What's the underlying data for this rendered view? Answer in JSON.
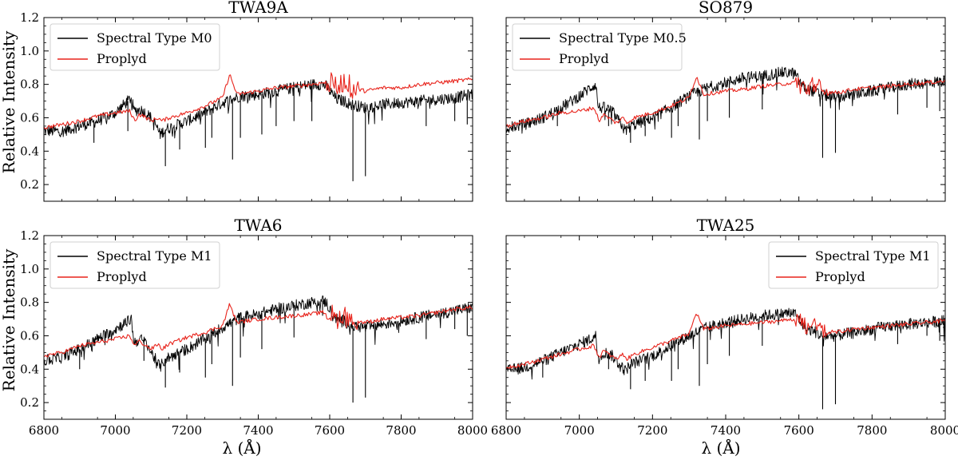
{
  "figure": {
    "ylabel": "Relative Intensity",
    "xlabel": "λ (Å)"
  },
  "chart_data": [
    {
      "type": "line",
      "title": "TWA9A",
      "xlabel": "",
      "ylabel": "Relative Intensity",
      "xlim": [
        6800,
        8000
      ],
      "ylim": [
        0.1,
        1.2
      ],
      "xticks": [
        "6800",
        "7000",
        "7200",
        "7400",
        "7600",
        "7800",
        "8000"
      ],
      "yticks": [
        "0.2",
        "0.4",
        "0.6",
        "0.8",
        "1.0",
        "1.2"
      ],
      "legend_position": "top-left",
      "series": [
        {
          "name": "Spectral Type M0",
          "color": "#000000",
          "x": [
            6800,
            6850,
            6900,
            6950,
            7000,
            7030,
            7045,
            7052,
            7070,
            7090,
            7100,
            7115,
            7125,
            7140,
            7200,
            7250,
            7300,
            7350,
            7400,
            7450,
            7500,
            7550,
            7580,
            7590,
            7600,
            7620,
            7640,
            7660,
            7700,
            7750,
            7800,
            7850,
            7900,
            7950,
            8000
          ],
          "values": [
            0.52,
            0.52,
            0.55,
            0.58,
            0.63,
            0.69,
            0.72,
            0.64,
            0.65,
            0.62,
            0.6,
            0.55,
            0.5,
            0.53,
            0.58,
            0.63,
            0.69,
            0.73,
            0.74,
            0.76,
            0.78,
            0.8,
            0.8,
            0.79,
            0.76,
            0.71,
            0.7,
            0.68,
            0.66,
            0.68,
            0.69,
            0.7,
            0.71,
            0.72,
            0.74
          ],
          "lines": [
            [
              6940,
              0.45
            ],
            [
              7035,
              0.52
            ],
            [
              7140,
              0.31
            ],
            [
              7180,
              0.41
            ],
            [
              7252,
              0.42
            ],
            [
              7270,
              0.48
            ],
            [
              7328,
              0.35
            ],
            [
              7350,
              0.48
            ],
            [
              7410,
              0.5
            ],
            [
              7450,
              0.55
            ],
            [
              7500,
              0.58
            ],
            [
              7550,
              0.58
            ],
            [
              7665,
              0.22
            ],
            [
              7700,
              0.25
            ],
            [
              7870,
              0.55
            ],
            [
              7950,
              0.58
            ],
            [
              7985,
              0.56
            ]
          ]
        },
        {
          "name": "Proplyd",
          "color": "#e8241c",
          "x": [
            6800,
            6850,
            6900,
            6950,
            7000,
            7040,
            7055,
            7065,
            7080,
            7100,
            7120,
            7130,
            7150,
            7200,
            7250,
            7300,
            7320,
            7340,
            7400,
            7450,
            7500,
            7550,
            7580,
            7600,
            7620,
            7640,
            7660,
            7700,
            7750,
            7800,
            7850,
            7900,
            7950,
            8000
          ],
          "values": [
            0.54,
            0.56,
            0.58,
            0.61,
            0.63,
            0.64,
            0.58,
            0.62,
            0.61,
            0.58,
            0.6,
            0.58,
            0.6,
            0.63,
            0.67,
            0.72,
            0.86,
            0.74,
            0.76,
            0.78,
            0.79,
            0.8,
            0.81,
            0.81,
            0.78,
            0.82,
            0.78,
            0.76,
            0.78,
            0.78,
            0.8,
            0.81,
            0.82,
            0.83
          ],
          "lines": []
        }
      ]
    },
    {
      "type": "line",
      "title": "SO879",
      "xlabel": "",
      "ylabel": "",
      "xlim": [
        6800,
        8000
      ],
      "ylim": [
        0.1,
        1.2
      ],
      "xticks": [
        "6800",
        "7000",
        "7200",
        "7400",
        "7600",
        "7800",
        "8000"
      ],
      "yticks": [
        "0.2",
        "0.4",
        "0.6",
        "0.8",
        "1.0",
        "1.2"
      ],
      "legend_position": "top-left",
      "series": [
        {
          "name": "Spectral Type M0.5",
          "color": "#000000",
          "x": [
            6800,
            6850,
            6900,
            6950,
            7000,
            7030,
            7045,
            7052,
            7070,
            7090,
            7100,
            7115,
            7125,
            7140,
            7200,
            7250,
            7300,
            7350,
            7400,
            7450,
            7500,
            7550,
            7580,
            7590,
            7600,
            7620,
            7640,
            7660,
            7700,
            7750,
            7800,
            7850,
            7900,
            7950,
            8000
          ],
          "values": [
            0.54,
            0.56,
            0.6,
            0.66,
            0.73,
            0.78,
            0.8,
            0.66,
            0.66,
            0.64,
            0.6,
            0.56,
            0.52,
            0.55,
            0.6,
            0.66,
            0.73,
            0.78,
            0.81,
            0.84,
            0.85,
            0.87,
            0.87,
            0.86,
            0.82,
            0.77,
            0.76,
            0.74,
            0.72,
            0.74,
            0.76,
            0.78,
            0.8,
            0.81,
            0.82
          ],
          "lines": [
            [
              6940,
              0.55
            ],
            [
              7080,
              0.55
            ],
            [
              7140,
              0.45
            ],
            [
              7180,
              0.49
            ],
            [
              7252,
              0.48
            ],
            [
              7270,
              0.55
            ],
            [
              7328,
              0.47
            ],
            [
              7350,
              0.58
            ],
            [
              7410,
              0.6
            ],
            [
              7500,
              0.65
            ],
            [
              7665,
              0.36
            ],
            [
              7700,
              0.39
            ],
            [
              7870,
              0.62
            ],
            [
              7950,
              0.66
            ],
            [
              7985,
              0.64
            ]
          ]
        },
        {
          "name": "Proplyd",
          "color": "#e8241c",
          "x": [
            6800,
            6850,
            6900,
            6950,
            7000,
            7040,
            7055,
            7065,
            7080,
            7100,
            7120,
            7130,
            7150,
            7200,
            7250,
            7300,
            7320,
            7340,
            7400,
            7450,
            7500,
            7550,
            7580,
            7600,
            7620,
            7640,
            7660,
            7700,
            7750,
            7800,
            7850,
            7900,
            7950,
            8000
          ],
          "values": [
            0.55,
            0.58,
            0.6,
            0.63,
            0.64,
            0.66,
            0.58,
            0.62,
            0.6,
            0.57,
            0.6,
            0.57,
            0.6,
            0.63,
            0.67,
            0.72,
            0.85,
            0.74,
            0.76,
            0.77,
            0.79,
            0.8,
            0.81,
            0.8,
            0.77,
            0.8,
            0.76,
            0.75,
            0.77,
            0.78,
            0.79,
            0.8,
            0.81,
            0.82
          ],
          "lines": []
        }
      ]
    },
    {
      "type": "line",
      "title": "TWA6",
      "xlabel": "λ (Å)",
      "ylabel": "Relative Intensity",
      "xlim": [
        6800,
        8000
      ],
      "ylim": [
        0.1,
        1.2
      ],
      "xticks": [
        "6800",
        "7000",
        "7200",
        "7400",
        "7600",
        "7800",
        "8000"
      ],
      "yticks": [
        "0.2",
        "0.4",
        "0.6",
        "0.8",
        "1.0",
        "1.2"
      ],
      "legend_position": "top-left",
      "series": [
        {
          "name": "Spectral Type M1",
          "color": "#000000",
          "x": [
            6800,
            6850,
            6900,
            6950,
            7000,
            7030,
            7045,
            7052,
            7070,
            7090,
            7100,
            7115,
            7125,
            7140,
            7200,
            7250,
            7300,
            7350,
            7400,
            7450,
            7500,
            7550,
            7580,
            7590,
            7600,
            7620,
            7640,
            7660,
            7700,
            7750,
            7800,
            7850,
            7900,
            7950,
            8000
          ],
          "values": [
            0.45,
            0.47,
            0.52,
            0.58,
            0.64,
            0.68,
            0.7,
            0.56,
            0.58,
            0.55,
            0.5,
            0.45,
            0.41,
            0.46,
            0.52,
            0.58,
            0.65,
            0.71,
            0.73,
            0.76,
            0.78,
            0.8,
            0.81,
            0.8,
            0.76,
            0.7,
            0.69,
            0.66,
            0.65,
            0.67,
            0.69,
            0.71,
            0.73,
            0.75,
            0.77
          ],
          "lines": [
            [
              6900,
              0.4
            ],
            [
              7080,
              0.45
            ],
            [
              7140,
              0.29
            ],
            [
              7180,
              0.38
            ],
            [
              7252,
              0.35
            ],
            [
              7270,
              0.43
            ],
            [
              7328,
              0.3
            ],
            [
              7350,
              0.47
            ],
            [
              7410,
              0.52
            ],
            [
              7500,
              0.59
            ],
            [
              7580,
              0.72
            ],
            [
              7665,
              0.2
            ],
            [
              7700,
              0.23
            ],
            [
              7870,
              0.58
            ],
            [
              7950,
              0.64
            ],
            [
              7985,
              0.6
            ]
          ]
        },
        {
          "name": "Proplyd",
          "color": "#e8241c",
          "x": [
            6800,
            6850,
            6900,
            6950,
            7000,
            7040,
            7055,
            7065,
            7080,
            7100,
            7120,
            7130,
            7150,
            7200,
            7250,
            7300,
            7320,
            7340,
            7400,
            7450,
            7500,
            7550,
            7580,
            7600,
            7620,
            7640,
            7660,
            7700,
            7750,
            7800,
            7850,
            7900,
            7950,
            8000
          ],
          "values": [
            0.48,
            0.5,
            0.54,
            0.56,
            0.58,
            0.6,
            0.54,
            0.57,
            0.55,
            0.52,
            0.55,
            0.52,
            0.55,
            0.59,
            0.62,
            0.66,
            0.79,
            0.68,
            0.7,
            0.71,
            0.72,
            0.73,
            0.74,
            0.73,
            0.7,
            0.73,
            0.69,
            0.68,
            0.7,
            0.71,
            0.72,
            0.74,
            0.76,
            0.77
          ],
          "lines": []
        }
      ]
    },
    {
      "type": "line",
      "title": "TWA25",
      "xlabel": "λ (Å)",
      "ylabel": "",
      "xlim": [
        6800,
        8000
      ],
      "ylim": [
        0.1,
        1.2
      ],
      "xticks": [
        "6800",
        "7000",
        "7200",
        "7400",
        "7600",
        "7800",
        "8000"
      ],
      "yticks": [
        "0.2",
        "0.4",
        "0.6",
        "0.8",
        "1.0",
        "1.2"
      ],
      "legend_position": "top-right",
      "series": [
        {
          "name": "Spectral Type M1",
          "color": "#000000",
          "x": [
            6800,
            6850,
            6900,
            6950,
            7000,
            7030,
            7045,
            7052,
            7070,
            7090,
            7100,
            7115,
            7125,
            7140,
            7200,
            7250,
            7300,
            7350,
            7400,
            7450,
            7500,
            7550,
            7580,
            7590,
            7600,
            7620,
            7640,
            7660,
            7700,
            7750,
            7800,
            7850,
            7900,
            7950,
            8000
          ],
          "values": [
            0.39,
            0.41,
            0.45,
            0.5,
            0.55,
            0.58,
            0.6,
            0.47,
            0.5,
            0.48,
            0.45,
            0.42,
            0.39,
            0.43,
            0.48,
            0.54,
            0.6,
            0.65,
            0.68,
            0.7,
            0.72,
            0.73,
            0.74,
            0.73,
            0.7,
            0.64,
            0.63,
            0.6,
            0.6,
            0.62,
            0.64,
            0.66,
            0.67,
            0.68,
            0.69
          ],
          "lines": [
            [
              6900,
              0.35
            ],
            [
              7080,
              0.4
            ],
            [
              7140,
              0.28
            ],
            [
              7180,
              0.33
            ],
            [
              7252,
              0.33
            ],
            [
              7270,
              0.4
            ],
            [
              7328,
              0.3
            ],
            [
              7350,
              0.43
            ],
            [
              7410,
              0.48
            ],
            [
              7500,
              0.54
            ],
            [
              7665,
              0.16
            ],
            [
              7700,
              0.19
            ],
            [
              7870,
              0.55
            ],
            [
              7950,
              0.6
            ],
            [
              7985,
              0.57
            ]
          ]
        },
        {
          "name": "Proplyd",
          "color": "#e8241c",
          "x": [
            6800,
            6850,
            6900,
            6950,
            7000,
            7040,
            7055,
            7065,
            7080,
            7100,
            7120,
            7130,
            7150,
            7200,
            7250,
            7300,
            7320,
            7340,
            7400,
            7450,
            7500,
            7550,
            7580,
            7600,
            7620,
            7640,
            7660,
            7700,
            7750,
            7800,
            7850,
            7900,
            7950,
            8000
          ],
          "values": [
            0.41,
            0.43,
            0.46,
            0.49,
            0.52,
            0.54,
            0.47,
            0.51,
            0.49,
            0.46,
            0.49,
            0.46,
            0.49,
            0.53,
            0.57,
            0.61,
            0.74,
            0.64,
            0.66,
            0.67,
            0.68,
            0.69,
            0.7,
            0.69,
            0.65,
            0.68,
            0.63,
            0.62,
            0.64,
            0.65,
            0.66,
            0.67,
            0.68,
            0.69
          ],
          "lines": []
        }
      ]
    }
  ]
}
